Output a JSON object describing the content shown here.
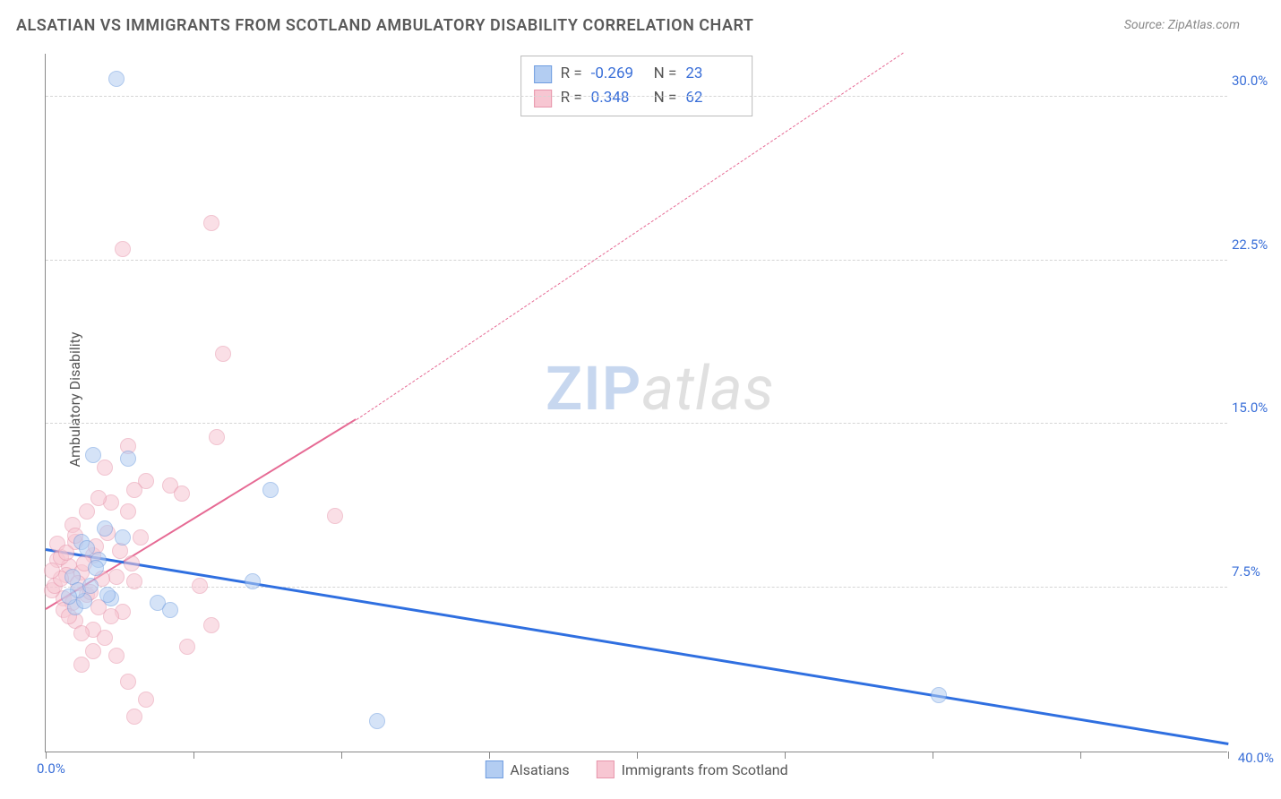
{
  "title": "ALSATIAN VS IMMIGRANTS FROM SCOTLAND AMBULATORY DISABILITY CORRELATION CHART",
  "source_label": "Source: ZipAtlas.com",
  "ylabel": "Ambulatory Disability",
  "watermark": {
    "part1": "ZIP",
    "part2": "atlas"
  },
  "colors": {
    "series_a_fill": "#b3cdf2",
    "series_a_stroke": "#6f9de0",
    "series_b_fill": "#f7c6d2",
    "series_b_stroke": "#e795ab",
    "trend_a": "#2f6fe0",
    "trend_b": "#e66a94",
    "axis_text": "#3a6fd8",
    "grid": "#d5d5d5",
    "text": "#5a5a5a"
  },
  "axes": {
    "xlim": [
      0,
      40
    ],
    "ylim": [
      0,
      32
    ],
    "x_origin_label": "0.0%",
    "x_max_label": "40.0%",
    "xticks": [
      0,
      5,
      10,
      15,
      20,
      25,
      30,
      35,
      40
    ],
    "yticks": [
      {
        "v": 7.5,
        "label": "7.5%"
      },
      {
        "v": 15.0,
        "label": "15.0%"
      },
      {
        "v": 22.5,
        "label": "22.5%"
      },
      {
        "v": 30.0,
        "label": "30.0%"
      }
    ]
  },
  "stats": {
    "a": {
      "R": "-0.269",
      "N": "23"
    },
    "b": {
      "R": "0.348",
      "N": "62"
    }
  },
  "bottom_legend": {
    "a": "Alsatians",
    "b": "Immigrants from Scotland"
  },
  "marker_radius": 9,
  "marker_opacity": 0.55,
  "trend_lines": {
    "a": {
      "x1": 0,
      "y1": 9.2,
      "x2": 40,
      "y2": 0.3,
      "width": 3,
      "dashed": false
    },
    "b_solid": {
      "x1": 0,
      "y1": 6.5,
      "x2": 10.5,
      "y2": 15.2,
      "width": 2.5,
      "dashed": false
    },
    "b_dashed": {
      "x1": 10.5,
      "y1": 15.2,
      "x2": 29,
      "y2": 32,
      "width": 1.5,
      "dashed": true
    }
  },
  "series_a_points": [
    [
      2.4,
      30.8
    ],
    [
      1.6,
      13.6
    ],
    [
      2.8,
      13.4
    ],
    [
      1.2,
      9.6
    ],
    [
      1.4,
      9.3
    ],
    [
      7.6,
      12.0
    ],
    [
      7.0,
      7.8
    ],
    [
      2.2,
      7.0
    ],
    [
      3.8,
      6.8
    ],
    [
      1.0,
      6.6
    ],
    [
      4.2,
      6.5
    ],
    [
      11.2,
      1.4
    ],
    [
      30.2,
      2.6
    ],
    [
      1.8,
      8.8
    ],
    [
      0.9,
      8.0
    ],
    [
      2.0,
      10.2
    ],
    [
      2.6,
      9.8
    ],
    [
      1.3,
      6.9
    ],
    [
      1.1,
      7.4
    ],
    [
      0.8,
      7.1
    ],
    [
      1.5,
      7.6
    ],
    [
      1.7,
      8.4
    ],
    [
      2.1,
      7.2
    ]
  ],
  "series_b_points": [
    [
      5.6,
      24.2
    ],
    [
      2.6,
      23.0
    ],
    [
      6.0,
      18.2
    ],
    [
      5.8,
      14.4
    ],
    [
      2.8,
      14.0
    ],
    [
      2.0,
      13.0
    ],
    [
      3.4,
      12.4
    ],
    [
      4.2,
      12.2
    ],
    [
      3.0,
      12.0
    ],
    [
      2.2,
      11.4
    ],
    [
      2.8,
      11.0
    ],
    [
      4.6,
      11.8
    ],
    [
      9.8,
      10.8
    ],
    [
      3.2,
      9.8
    ],
    [
      1.0,
      9.6
    ],
    [
      1.6,
      9.0
    ],
    [
      0.4,
      8.8
    ],
    [
      0.8,
      8.5
    ],
    [
      1.2,
      8.2
    ],
    [
      2.4,
      8.0
    ],
    [
      3.0,
      7.8
    ],
    [
      5.2,
      7.6
    ],
    [
      5.6,
      5.8
    ],
    [
      1.4,
      7.2
    ],
    [
      0.6,
      7.0
    ],
    [
      0.2,
      7.4
    ],
    [
      0.9,
      6.8
    ],
    [
      1.8,
      6.6
    ],
    [
      2.6,
      6.4
    ],
    [
      1.0,
      6.0
    ],
    [
      1.6,
      5.6
    ],
    [
      2.0,
      5.2
    ],
    [
      4.8,
      4.8
    ],
    [
      2.4,
      4.4
    ],
    [
      1.2,
      4.0
    ],
    [
      2.8,
      3.2
    ],
    [
      3.4,
      2.4
    ],
    [
      3.0,
      1.6
    ],
    [
      0.5,
      8.9
    ],
    [
      0.7,
      8.1
    ],
    [
      1.1,
      7.7
    ],
    [
      1.5,
      7.3
    ],
    [
      1.9,
      7.9
    ],
    [
      0.3,
      7.6
    ],
    [
      0.6,
      6.5
    ],
    [
      0.8,
      6.2
    ],
    [
      1.3,
      8.6
    ],
    [
      1.7,
      9.4
    ],
    [
      2.1,
      10.0
    ],
    [
      2.5,
      9.2
    ],
    [
      0.4,
      9.5
    ],
    [
      0.9,
      10.4
    ],
    [
      1.4,
      11.0
    ],
    [
      1.8,
      11.6
    ],
    [
      0.5,
      7.9
    ],
    [
      0.2,
      8.3
    ],
    [
      0.7,
      9.1
    ],
    [
      1.0,
      9.9
    ],
    [
      1.2,
      5.4
    ],
    [
      1.6,
      4.6
    ],
    [
      2.2,
      6.2
    ],
    [
      2.9,
      8.6
    ]
  ]
}
